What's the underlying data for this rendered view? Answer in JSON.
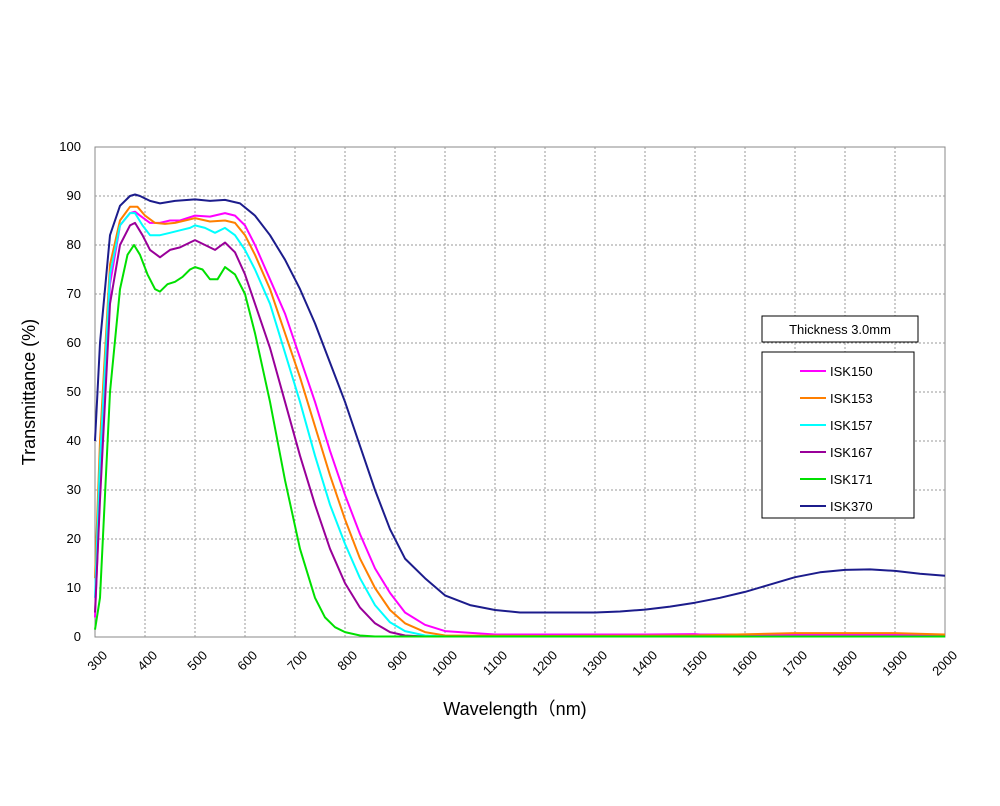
{
  "chart_data": {
    "type": "line",
    "xlabel": "Wavelength（nm)",
    "ylabel": "Transmittance (%)",
    "xlim": [
      300,
      2000
    ],
    "ylim": [
      0,
      100
    ],
    "x_ticks": [
      300,
      400,
      500,
      600,
      700,
      800,
      900,
      1000,
      1100,
      1200,
      1300,
      1400,
      1500,
      1600,
      1700,
      1800,
      1900,
      2000
    ],
    "y_ticks": [
      0,
      10,
      20,
      30,
      40,
      50,
      60,
      70,
      80,
      90,
      100
    ],
    "grid": true,
    "legend_title": "Thickness 3.0mm",
    "legend_position": "right",
    "series": [
      {
        "name": "ISK150",
        "color": "#ff00ff",
        "points": [
          [
            300,
            4
          ],
          [
            310,
            30
          ],
          [
            330,
            72
          ],
          [
            350,
            84
          ],
          [
            370,
            86.5
          ],
          [
            380,
            86.8
          ],
          [
            390,
            86
          ],
          [
            410,
            84.5
          ],
          [
            430,
            84.5
          ],
          [
            450,
            85
          ],
          [
            470,
            85
          ],
          [
            500,
            86
          ],
          [
            530,
            85.8
          ],
          [
            560,
            86.5
          ],
          [
            580,
            86
          ],
          [
            600,
            84
          ],
          [
            620,
            80
          ],
          [
            650,
            73
          ],
          [
            680,
            66
          ],
          [
            710,
            57
          ],
          [
            740,
            48
          ],
          [
            770,
            38
          ],
          [
            800,
            29
          ],
          [
            830,
            21
          ],
          [
            860,
            14
          ],
          [
            890,
            9
          ],
          [
            920,
            5
          ],
          [
            960,
            2.5
          ],
          [
            1000,
            1.2
          ],
          [
            1100,
            0.5
          ],
          [
            1200,
            0.5
          ],
          [
            1300,
            0.5
          ],
          [
            1400,
            0.5
          ],
          [
            1500,
            0.6
          ],
          [
            1510,
            0.5
          ],
          [
            1600,
            0.5
          ],
          [
            2000,
            0.5
          ]
        ]
      },
      {
        "name": "ISK153",
        "color": "#ff7f00",
        "points": [
          [
            300,
            12
          ],
          [
            310,
            40
          ],
          [
            330,
            76
          ],
          [
            350,
            85
          ],
          [
            370,
            87.8
          ],
          [
            385,
            87.8
          ],
          [
            400,
            86
          ],
          [
            420,
            84.5
          ],
          [
            440,
            84.3
          ],
          [
            460,
            84.5
          ],
          [
            480,
            85
          ],
          [
            500,
            85.5
          ],
          [
            530,
            84.8
          ],
          [
            560,
            85
          ],
          [
            580,
            84.5
          ],
          [
            600,
            82
          ],
          [
            620,
            78
          ],
          [
            650,
            71
          ],
          [
            680,
            62
          ],
          [
            710,
            53
          ],
          [
            740,
            43
          ],
          [
            770,
            33
          ],
          [
            800,
            24
          ],
          [
            830,
            16
          ],
          [
            860,
            10
          ],
          [
            890,
            5.5
          ],
          [
            920,
            2.8
          ],
          [
            960,
            1
          ],
          [
            1000,
            0.3
          ],
          [
            1200,
            0.2
          ],
          [
            1500,
            0.3
          ],
          [
            1700,
            0.8
          ],
          [
            1900,
            0.8
          ],
          [
            2000,
            0.5
          ]
        ]
      },
      {
        "name": "ISK157",
        "color": "#00ffff",
        "points": [
          [
            300,
            8
          ],
          [
            310,
            36
          ],
          [
            330,
            74
          ],
          [
            350,
            84
          ],
          [
            370,
            86.5
          ],
          [
            380,
            86.5
          ],
          [
            395,
            84
          ],
          [
            410,
            82
          ],
          [
            430,
            82
          ],
          [
            450,
            82.5
          ],
          [
            470,
            83
          ],
          [
            490,
            83.5
          ],
          [
            500,
            84
          ],
          [
            520,
            83.5
          ],
          [
            540,
            82.5
          ],
          [
            560,
            83.5
          ],
          [
            580,
            82
          ],
          [
            600,
            79
          ],
          [
            620,
            75
          ],
          [
            650,
            68
          ],
          [
            680,
            58
          ],
          [
            710,
            48
          ],
          [
            740,
            37
          ],
          [
            770,
            27
          ],
          [
            800,
            19
          ],
          [
            830,
            12
          ],
          [
            860,
            6.5
          ],
          [
            890,
            3
          ],
          [
            920,
            1.2
          ],
          [
            960,
            0.3
          ],
          [
            1000,
            0.1
          ],
          [
            2000,
            0.1
          ]
        ]
      },
      {
        "name": "ISK167",
        "color": "#990099",
        "points": [
          [
            300,
            5
          ],
          [
            310,
            28
          ],
          [
            330,
            68
          ],
          [
            350,
            80
          ],
          [
            370,
            84
          ],
          [
            380,
            84.5
          ],
          [
            395,
            82
          ],
          [
            410,
            79
          ],
          [
            430,
            77.5
          ],
          [
            450,
            79
          ],
          [
            470,
            79.5
          ],
          [
            490,
            80.5
          ],
          [
            500,
            81
          ],
          [
            520,
            80
          ],
          [
            540,
            79
          ],
          [
            560,
            80.5
          ],
          [
            580,
            78.5
          ],
          [
            600,
            74
          ],
          [
            620,
            68
          ],
          [
            650,
            59
          ],
          [
            680,
            48
          ],
          [
            710,
            37
          ],
          [
            740,
            27
          ],
          [
            770,
            18
          ],
          [
            800,
            11
          ],
          [
            830,
            6
          ],
          [
            860,
            2.8
          ],
          [
            890,
            1
          ],
          [
            920,
            0.3
          ],
          [
            960,
            0.1
          ],
          [
            2000,
            0.1
          ]
        ]
      },
      {
        "name": "ISK171",
        "color": "#00e000",
        "points": [
          [
            300,
            1.5
          ],
          [
            310,
            8
          ],
          [
            330,
            50
          ],
          [
            350,
            71
          ],
          [
            365,
            78
          ],
          [
            378,
            80
          ],
          [
            390,
            78
          ],
          [
            405,
            74
          ],
          [
            420,
            71
          ],
          [
            430,
            70.5
          ],
          [
            445,
            72
          ],
          [
            460,
            72.5
          ],
          [
            475,
            73.5
          ],
          [
            490,
            75
          ],
          [
            500,
            75.5
          ],
          [
            515,
            75
          ],
          [
            530,
            73
          ],
          [
            545,
            73
          ],
          [
            560,
            75.5
          ],
          [
            580,
            74
          ],
          [
            600,
            70
          ],
          [
            620,
            62
          ],
          [
            650,
            48
          ],
          [
            680,
            32
          ],
          [
            710,
            18
          ],
          [
            740,
            8
          ],
          [
            760,
            4
          ],
          [
            780,
            2
          ],
          [
            800,
            1
          ],
          [
            830,
            0.3
          ],
          [
            860,
            0.1
          ],
          [
            2000,
            0.1
          ]
        ]
      },
      {
        "name": "ISK370",
        "color": "#1c1c8c",
        "points": [
          [
            300,
            40
          ],
          [
            310,
            60
          ],
          [
            330,
            82
          ],
          [
            350,
            88
          ],
          [
            370,
            90
          ],
          [
            380,
            90.3
          ],
          [
            390,
            90
          ],
          [
            410,
            89
          ],
          [
            430,
            88.5
          ],
          [
            460,
            89
          ],
          [
            500,
            89.3
          ],
          [
            530,
            89
          ],
          [
            560,
            89.2
          ],
          [
            590,
            88.5
          ],
          [
            620,
            86
          ],
          [
            650,
            82
          ],
          [
            680,
            77
          ],
          [
            710,
            71
          ],
          [
            740,
            64
          ],
          [
            770,
            56
          ],
          [
            800,
            48
          ],
          [
            830,
            39
          ],
          [
            860,
            30
          ],
          [
            890,
            22
          ],
          [
            920,
            16
          ],
          [
            960,
            12
          ],
          [
            1000,
            8.5
          ],
          [
            1050,
            6.5
          ],
          [
            1100,
            5.5
          ],
          [
            1150,
            5
          ],
          [
            1200,
            5
          ],
          [
            1250,
            5
          ],
          [
            1300,
            5
          ],
          [
            1350,
            5.2
          ],
          [
            1400,
            5.6
          ],
          [
            1450,
            6.2
          ],
          [
            1500,
            7
          ],
          [
            1550,
            8
          ],
          [
            1600,
            9.2
          ],
          [
            1650,
            10.7
          ],
          [
            1700,
            12.2
          ],
          [
            1750,
            13.2
          ],
          [
            1800,
            13.7
          ],
          [
            1850,
            13.8
          ],
          [
            1900,
            13.5
          ],
          [
            1950,
            12.9
          ],
          [
            2000,
            12.5
          ]
        ]
      }
    ]
  }
}
